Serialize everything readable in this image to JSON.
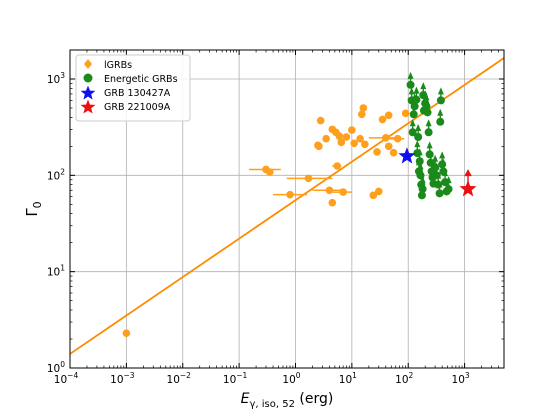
{
  "chart_data": {
    "type": "scatter",
    "title": "",
    "xlabel_base": "E",
    "xlabel_sub": "γ, iso, 52",
    "xlabel_unit": " (erg)",
    "ylabel_base": "Γ",
    "ylabel_sub": "0",
    "xscale": "log",
    "yscale": "log",
    "xlim": [
      0.0001,
      5000
    ],
    "ylim": [
      1,
      2000
    ],
    "grid": true,
    "legend_position": "top-left",
    "x_ticks": [
      {
        "value": 0.0001,
        "base": "10",
        "exp": "−4"
      },
      {
        "value": 0.001,
        "base": "10",
        "exp": "−3"
      },
      {
        "value": 0.01,
        "base": "10",
        "exp": "−2"
      },
      {
        "value": 0.1,
        "base": "10",
        "exp": "−1"
      },
      {
        "value": 1,
        "base": "10",
        "exp": "0"
      },
      {
        "value": 10,
        "base": "10",
        "exp": "1"
      },
      {
        "value": 100,
        "base": "10",
        "exp": "2"
      },
      {
        "value": 1000,
        "base": "10",
        "exp": "3"
      }
    ],
    "y_ticks": [
      {
        "value": 1,
        "base": "10",
        "exp": "0"
      },
      {
        "value": 10,
        "base": "10",
        "exp": "1"
      },
      {
        "value": 100,
        "base": "10",
        "exp": "2"
      },
      {
        "value": 1000,
        "base": "10",
        "exp": "3"
      }
    ],
    "fit_line": {
      "color": "#ff8c00",
      "x": [
        0.0001,
        5000
      ],
      "y": [
        1.4,
        1650
      ]
    },
    "series": [
      {
        "name": "lGRBs",
        "marker": "diamond",
        "color": "#ff9f1c",
        "points": [
          {
            "x": 0.001,
            "y": 2.3
          },
          {
            "x": 0.3,
            "y": 115,
            "xerr": [
              0.15,
              0.55
            ]
          },
          {
            "x": 0.35,
            "y": 108
          },
          {
            "x": 0.8,
            "y": 63,
            "xerr": [
              0.4,
              1.6
            ]
          },
          {
            "x": 1.7,
            "y": 93,
            "xerr": [
              0.7,
              4.5
            ]
          },
          {
            "x": 2.5,
            "y": 205
          },
          {
            "x": 2.6,
            "y": 200
          },
          {
            "x": 2.8,
            "y": 370
          },
          {
            "x": 3.5,
            "y": 240
          },
          {
            "x": 4.0,
            "y": 70,
            "xerr": [
              2.0,
              8.0
            ]
          },
          {
            "x": 4.5,
            "y": 52
          },
          {
            "x": 4.5,
            "y": 300
          },
          {
            "x": 5.2,
            "y": 280
          },
          {
            "x": 5.5,
            "y": 125,
            "xerr": [
              4.5,
              6.5
            ]
          },
          {
            "x": 6.0,
            "y": 255
          },
          {
            "x": 6.5,
            "y": 220
          },
          {
            "x": 7.0,
            "y": 67,
            "xerr": [
              4.5,
              10
            ]
          },
          {
            "x": 8.0,
            "y": 250
          },
          {
            "x": 10,
            "y": 295
          },
          {
            "x": 11,
            "y": 215
          },
          {
            "x": 14,
            "y": 240
          },
          {
            "x": 15,
            "y": 430
          },
          {
            "x": 16,
            "y": 500
          },
          {
            "x": 17,
            "y": 210
          },
          {
            "x": 24,
            "y": 62
          },
          {
            "x": 28,
            "y": 175
          },
          {
            "x": 30,
            "y": 68
          },
          {
            "x": 35,
            "y": 380
          },
          {
            "x": 40,
            "y": 245,
            "xerr": [
              20,
              60
            ]
          },
          {
            "x": 45,
            "y": 200
          },
          {
            "x": 45,
            "y": 420
          },
          {
            "x": 55,
            "y": 172
          },
          {
            "x": 65,
            "y": 240,
            "xerr": [
              40,
              85
            ]
          },
          {
            "x": 90,
            "y": 440
          }
        ]
      },
      {
        "name": "Energetic GRBs",
        "marker": "circle",
        "color": "#1a8a1a",
        "lower_limit_arrows": true,
        "points": [
          {
            "x": 110,
            "y": 870
          },
          {
            "x": 115,
            "y": 600
          },
          {
            "x": 120,
            "y": 280
          },
          {
            "x": 125,
            "y": 430
          },
          {
            "x": 130,
            "y": 520
          },
          {
            "x": 140,
            "y": 610
          },
          {
            "x": 145,
            "y": 170
          },
          {
            "x": 150,
            "y": 250
          },
          {
            "x": 155,
            "y": 110
          },
          {
            "x": 160,
            "y": 140
          },
          {
            "x": 165,
            "y": 100
          },
          {
            "x": 170,
            "y": 80
          },
          {
            "x": 175,
            "y": 62
          },
          {
            "x": 180,
            "y": 72
          },
          {
            "x": 185,
            "y": 680
          },
          {
            "x": 190,
            "y": 470
          },
          {
            "x": 200,
            "y": 560
          },
          {
            "x": 210,
            "y": 520
          },
          {
            "x": 220,
            "y": 450
          },
          {
            "x": 230,
            "y": 280
          },
          {
            "x": 240,
            "y": 165
          },
          {
            "x": 250,
            "y": 135
          },
          {
            "x": 260,
            "y": 110
          },
          {
            "x": 270,
            "y": 95
          },
          {
            "x": 280,
            "y": 82
          },
          {
            "x": 300,
            "y": 120
          },
          {
            "x": 320,
            "y": 100
          },
          {
            "x": 340,
            "y": 80
          },
          {
            "x": 360,
            "y": 65
          },
          {
            "x": 370,
            "y": 360
          },
          {
            "x": 380,
            "y": 600
          },
          {
            "x": 400,
            "y": 130
          },
          {
            "x": 420,
            "y": 110
          },
          {
            "x": 450,
            "y": 85
          },
          {
            "x": 480,
            "y": 68
          },
          {
            "x": 520,
            "y": 72
          }
        ]
      },
      {
        "name": "GRB 130427A",
        "marker": "star",
        "color": "#1010ee",
        "points": [
          {
            "x": 95,
            "y": 158
          }
        ]
      },
      {
        "name": "GRB 221009A",
        "marker": "star",
        "color": "#ee1010",
        "lower_limit_arrows": true,
        "points": [
          {
            "x": 1150,
            "y": 72
          }
        ]
      }
    ]
  }
}
